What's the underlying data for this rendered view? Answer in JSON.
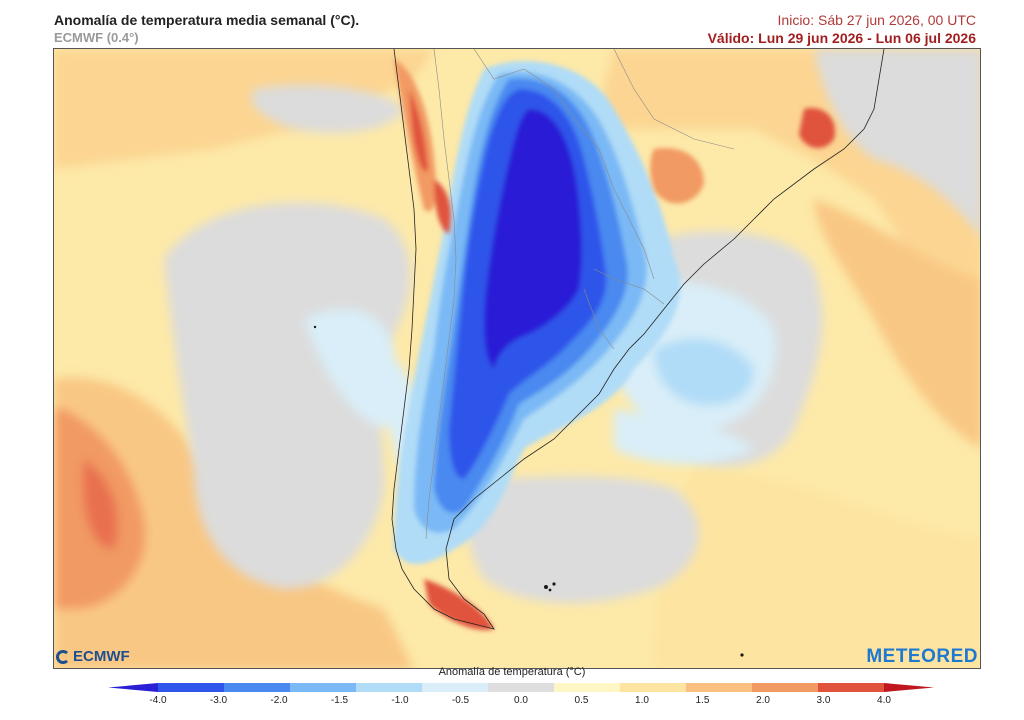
{
  "header": {
    "title": "Anomalía de temperatura media semanal (°C).",
    "model": "ECMWF (0.4°)",
    "init": "Inicio: Sáb 27 jun 2026, 00 UTC",
    "valid": "Válido: Lun 29 jun 2026 - Lun 06 jul 2026"
  },
  "logos": {
    "left": "ECMWF",
    "right": "METEORED"
  },
  "colorbar": {
    "title": "Anomalía de temperatura (°C)",
    "ticks": [
      "-4.0",
      "-3.0",
      "-2.0",
      "-1.5",
      "-1.0",
      "-0.5",
      "0.0",
      "0.5",
      "1.0",
      "1.5",
      "2.0",
      "3.0",
      "4.0"
    ],
    "colors": [
      "#2a1fd6",
      "#2f55ea",
      "#4a89f0",
      "#7ab9f5",
      "#b0dcf7",
      "#d9eef8",
      "#dedede",
      "#fff6c6",
      "#fde4a0",
      "#f9c082",
      "#f29a63",
      "#e0523c",
      "#c0161e"
    ]
  }
}
